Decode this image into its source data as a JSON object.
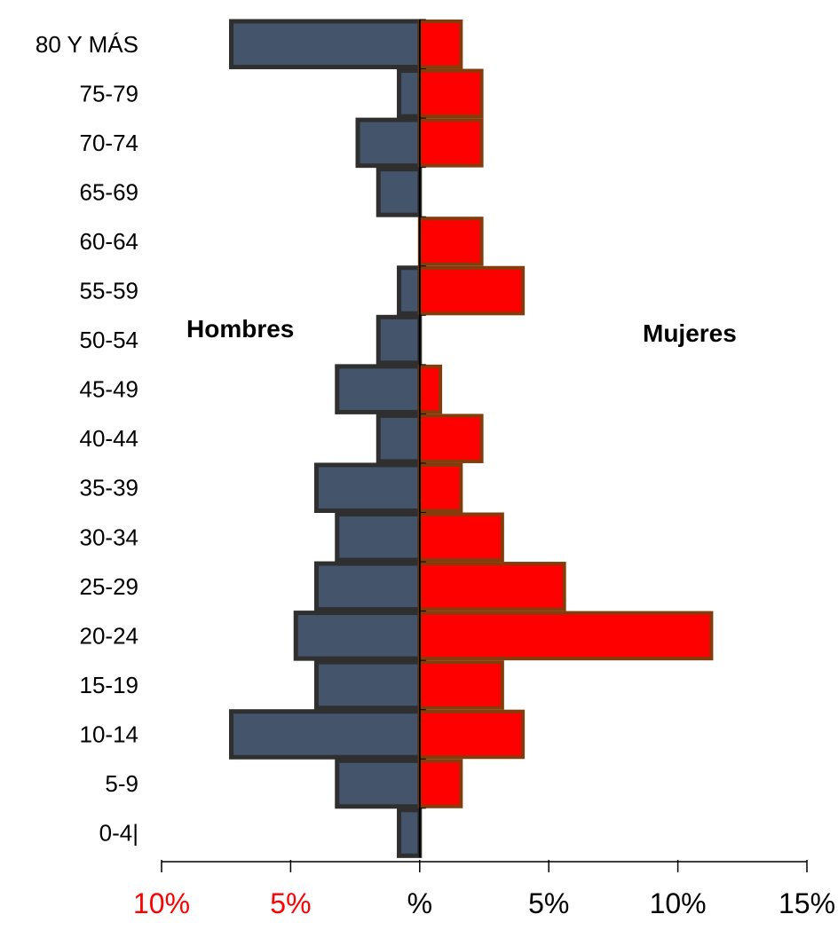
{
  "chart_data": {
    "type": "bar",
    "orientation": "horizontal",
    "subtype": "population-pyramid",
    "categories": [
      "80 Y MÁS",
      "75-79",
      "70-74",
      "65-69",
      "60-64",
      "55-59",
      "50-54",
      "45-49",
      "40-44",
      "35-39",
      "30-34",
      "25-29",
      "20-24",
      "15-19",
      "10-14",
      "5-9",
      "0-4|"
    ],
    "series": [
      {
        "name": "Hombres",
        "side": "left",
        "color": "#44546A",
        "stroke": "#2F2F2F",
        "values": [
          7.3,
          0.8,
          2.4,
          1.6,
          0,
          0.8,
          1.6,
          3.2,
          1.6,
          4.0,
          3.2,
          4.0,
          4.8,
          4.0,
          7.3,
          3.2,
          0.8
        ]
      },
      {
        "name": "Mujeres",
        "side": "right",
        "color": "#FF0000",
        "stroke": "#843C0C",
        "values": [
          1.6,
          2.4,
          2.4,
          0,
          2.4,
          4.0,
          0,
          0.8,
          2.4,
          1.6,
          3.2,
          5.6,
          11.3,
          3.2,
          4.0,
          1.6,
          0
        ]
      }
    ],
    "x_axis": {
      "range": [
        -10,
        15
      ],
      "ticks": [
        -10,
        -5,
        0,
        5,
        10,
        15
      ],
      "tick_labels": [
        "10%",
        "5%",
        "%",
        "5%",
        "10%",
        "15%"
      ],
      "tick_label_colors": [
        "#FF0000",
        "#FF0000",
        "#000000",
        "#000000",
        "#000000",
        "#000000"
      ]
    },
    "annotations": [
      "Hombres",
      "Mujeres"
    ],
    "grid": false,
    "legend": "none"
  }
}
